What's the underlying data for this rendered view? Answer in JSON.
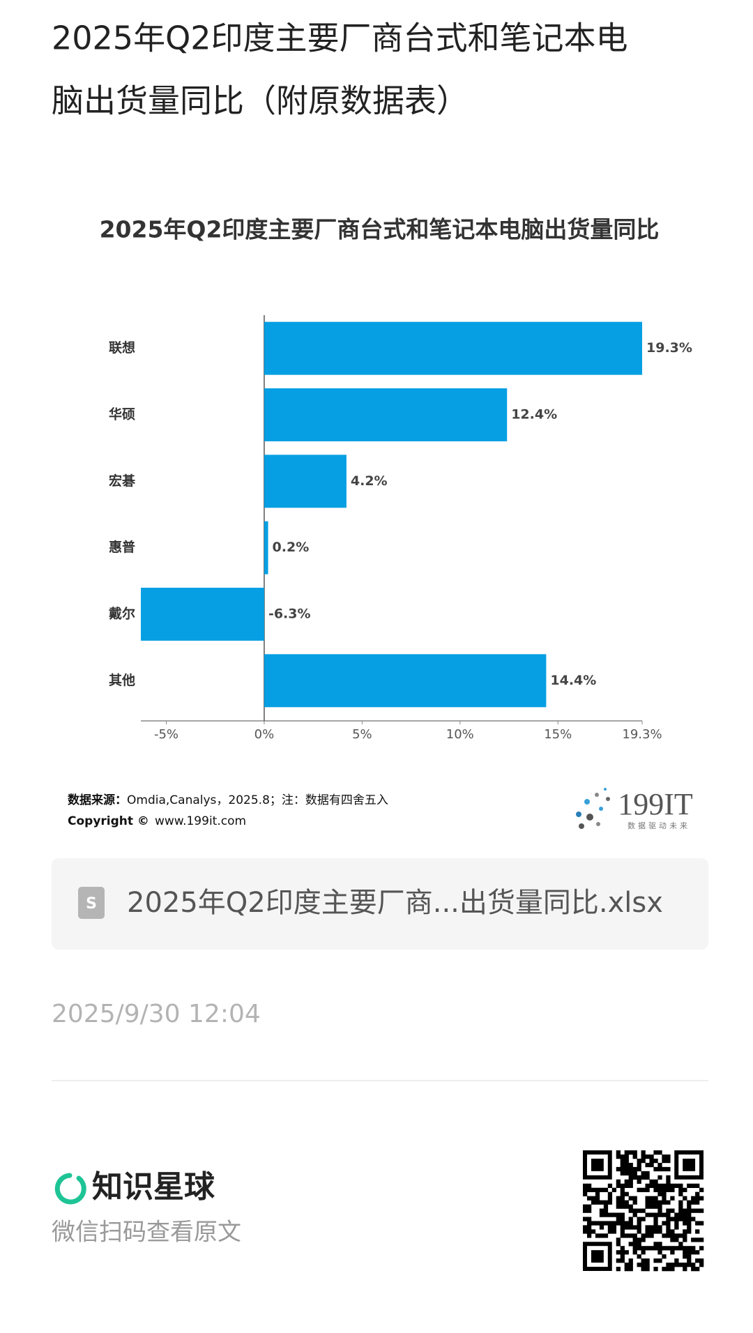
{
  "header": {
    "title_line1": "2025年Q2印度主要厂商台式和笔记本电",
    "title_line2": "脑出货量同比（附原数据表）"
  },
  "chart_data": {
    "type": "bar",
    "orientation": "horizontal",
    "title": "2025年Q2印度主要厂商台式和笔记本电脑出货量同比",
    "categories": [
      "联想",
      "华硕",
      "宏碁",
      "惠普",
      "戴尔",
      "其他"
    ],
    "values": [
      19.3,
      12.4,
      4.2,
      0.2,
      -6.3,
      14.4
    ],
    "value_labels": [
      "19.3%",
      "12.4%",
      "4.2%",
      "0.2%",
      "-6.3%",
      "14.4%"
    ],
    "color": "#069fe3",
    "xlim": [
      -6.3,
      19.3
    ],
    "xticks": [
      {
        "value": -5,
        "label": "-5%"
      },
      {
        "value": 0,
        "label": "0%"
      },
      {
        "value": 5,
        "label": "5%"
      },
      {
        "value": 10,
        "label": "10%"
      },
      {
        "value": 15,
        "label": "15%"
      },
      {
        "value": 19.3,
        "label": "19.3%"
      }
    ],
    "grid": false
  },
  "source": {
    "label": "数据来源：",
    "text": "Omdia,Canalys，2025.8；注：数据有四舍五入",
    "copyright_label": "Copyright ©",
    "copyright_text": "www.199it.com"
  },
  "logo": {
    "name": "199IT",
    "slogan": "数据驱动未来"
  },
  "attachment": {
    "icon": "S",
    "file_name": "2025年Q2印度主要厂商...出货量同比.xlsx"
  },
  "date": "2025/9/30 12:04",
  "footer": {
    "brand": "知识星球",
    "hint": "微信扫码查看原文"
  }
}
